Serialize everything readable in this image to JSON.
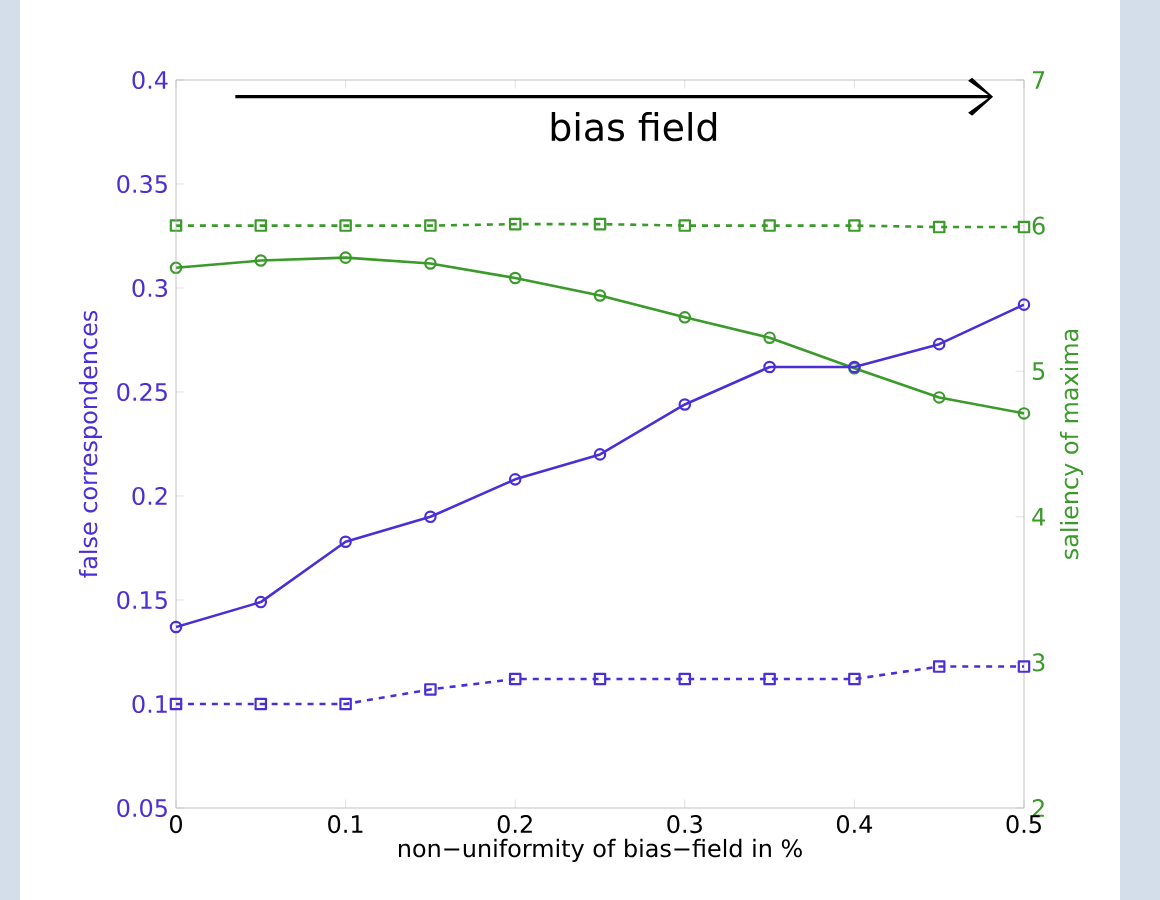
{
  "chart_data": {
    "type": "line",
    "xlabel": "non−uniformity of bias−field in %",
    "ylabel": "false correspondences",
    "y2label": "saliency of maxima",
    "x": [
      0,
      0.05,
      0.1,
      0.15,
      0.2,
      0.25,
      0.3,
      0.35,
      0.4,
      0.45,
      0.5
    ],
    "series": [
      {
        "color": "#4b2fd6",
        "axis": "y",
        "marker": "circle",
        "line_style": "solid",
        "values": [
          0.137,
          0.149,
          0.178,
          0.19,
          0.208,
          0.22,
          0.244,
          0.262,
          0.262,
          0.273,
          0.292
        ]
      },
      {
        "color": "#4b2fd6",
        "axis": "y",
        "marker": "square",
        "line_style": "dashed",
        "values": [
          0.1,
          0.1,
          0.1,
          0.107,
          0.112,
          0.112,
          0.112,
          0.112,
          0.112,
          0.118,
          0.118
        ]
      },
      {
        "color": "#3a9a2a",
        "axis": "y2",
        "marker": "circle",
        "line_style": "solid",
        "values": [
          5.71,
          5.76,
          5.78,
          5.74,
          5.64,
          5.52,
          5.37,
          5.23,
          5.02,
          4.82,
          4.71
        ]
      },
      {
        "color": "#3a9a2a",
        "axis": "y2",
        "marker": "square",
        "line_style": "dashed",
        "values": [
          6.0,
          6.0,
          6.0,
          6.0,
          6.01,
          6.01,
          6.0,
          6.0,
          6.0,
          5.99,
          5.99
        ]
      }
    ],
    "xlim": [
      0,
      0.5
    ],
    "xticks": [
      0,
      0.1,
      0.2,
      0.3,
      0.4,
      0.5
    ],
    "ylim": [
      0.05,
      0.4
    ],
    "yticks": [
      0.05,
      0.1,
      0.15,
      0.2,
      0.25,
      0.3,
      0.35,
      0.4
    ],
    "y2lim": [
      2,
      7
    ],
    "y2ticks": [
      2,
      3,
      4,
      5,
      6,
      7
    ],
    "annotations": [
      "bias field"
    ],
    "grid": false,
    "legend": false
  }
}
